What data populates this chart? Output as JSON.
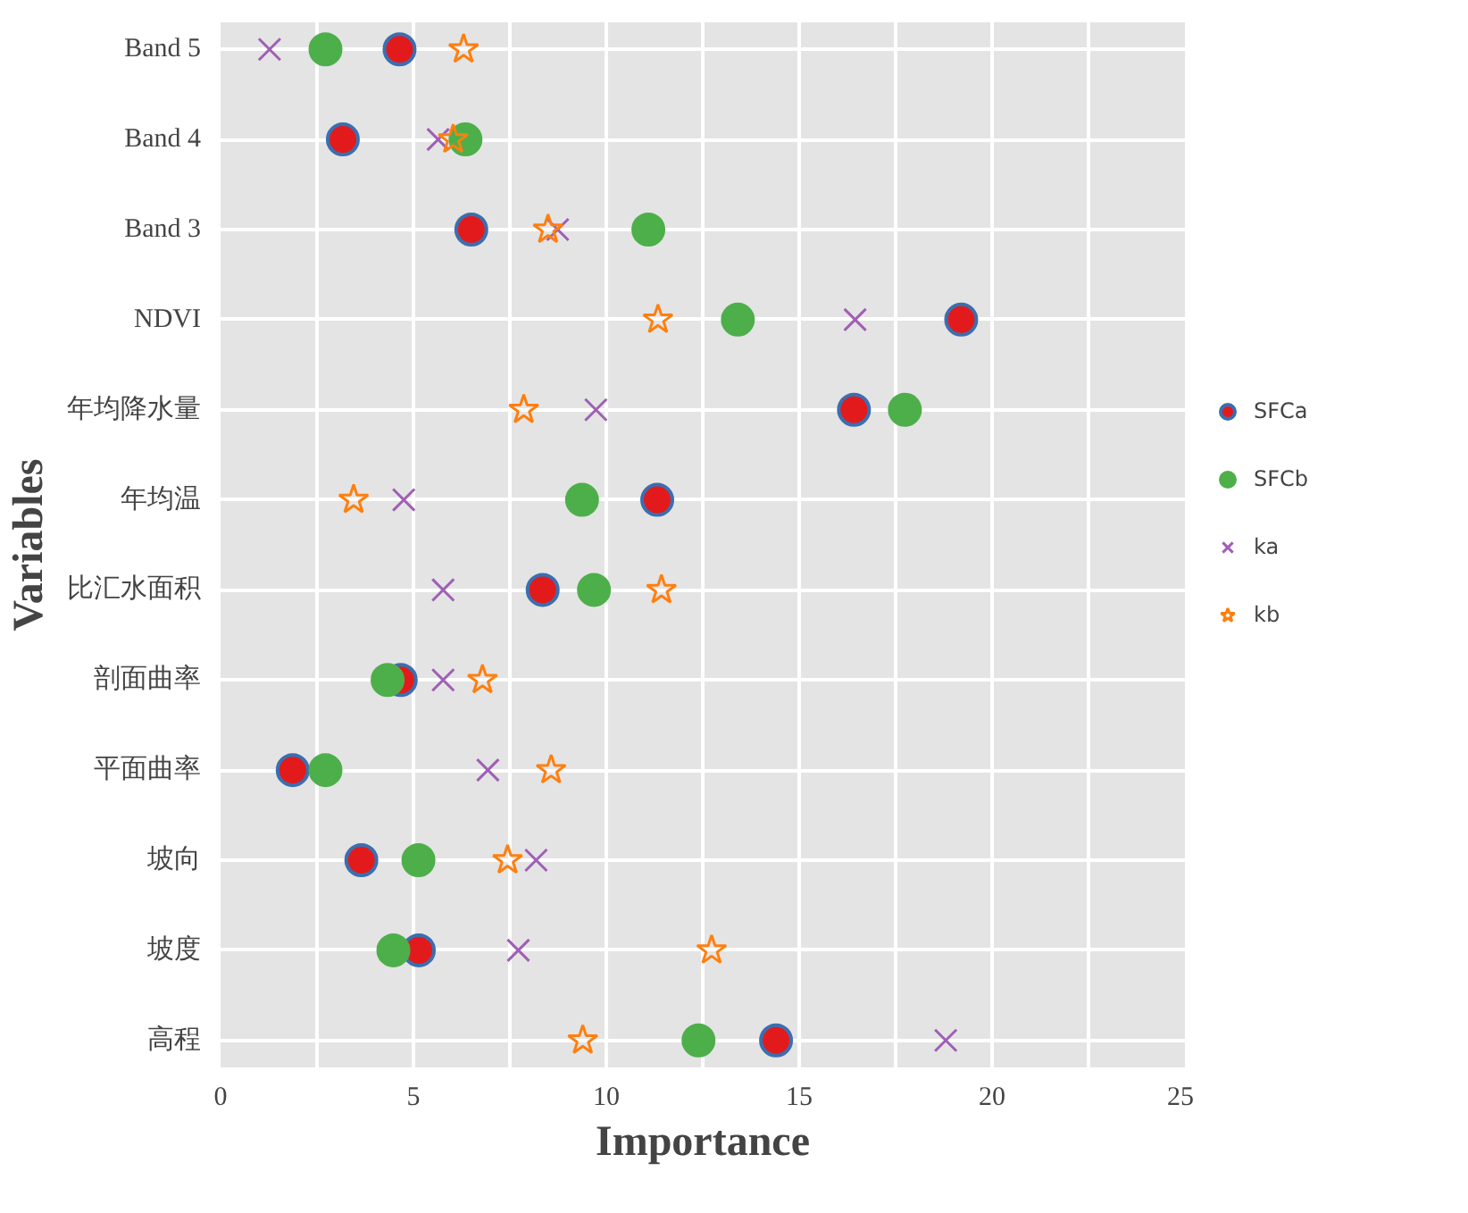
{
  "chart_data": {
    "type": "scatter",
    "xlabel": "Importance",
    "ylabel": "Variables",
    "categories": [
      "Band 5",
      "Band 4",
      "Band 3",
      "NDVI",
      "年均降水量",
      "年均温",
      "比汇水面积",
      "剖面曲率",
      "平面曲率",
      "坡向",
      "坡度",
      "高程"
    ],
    "xlim": [
      0,
      25
    ],
    "xticks": [
      0,
      {
        "value": 2.5,
        "label": null
      },
      5,
      {
        "value": 7.5,
        "label": null
      },
      10,
      {
        "value": 12.5,
        "label": null
      },
      15,
      {
        "value": 17.5,
        "label": null
      },
      20,
      {
        "value": 22.5,
        "label": null
      },
      25
    ],
    "grid": true,
    "legend": "right",
    "orientation": "horizontal",
    "series": [
      {
        "name": "SFCa",
        "color": "#e31a1c",
        "marker": "circle",
        "values": [
          4.64,
          3.17,
          6.5,
          19.2,
          16.42,
          11.32,
          8.35,
          4.67,
          1.87,
          3.65,
          5.14,
          14.4
        ]
      },
      {
        "name": "SFCb",
        "color": "#4daf4a",
        "marker": "circle",
        "values": [
          2.72,
          6.35,
          11.09,
          13.41,
          17.74,
          9.37,
          9.68,
          4.33,
          2.72,
          5.13,
          4.48,
          12.39
        ]
      },
      {
        "name": "ka",
        "color": "#a05fb5",
        "marker": "cross",
        "values": [
          1.27,
          5.64,
          8.74,
          16.45,
          9.73,
          4.75,
          5.77,
          5.77,
          6.93,
          8.18,
          7.72,
          18.8
        ]
      },
      {
        "name": "kb",
        "color": "#ff7f0e",
        "marker": "star",
        "values": [
          6.3,
          6.03,
          8.49,
          11.34,
          7.86,
          3.45,
          11.43,
          6.79,
          8.57,
          7.44,
          12.73,
          9.39
        ]
      }
    ]
  }
}
